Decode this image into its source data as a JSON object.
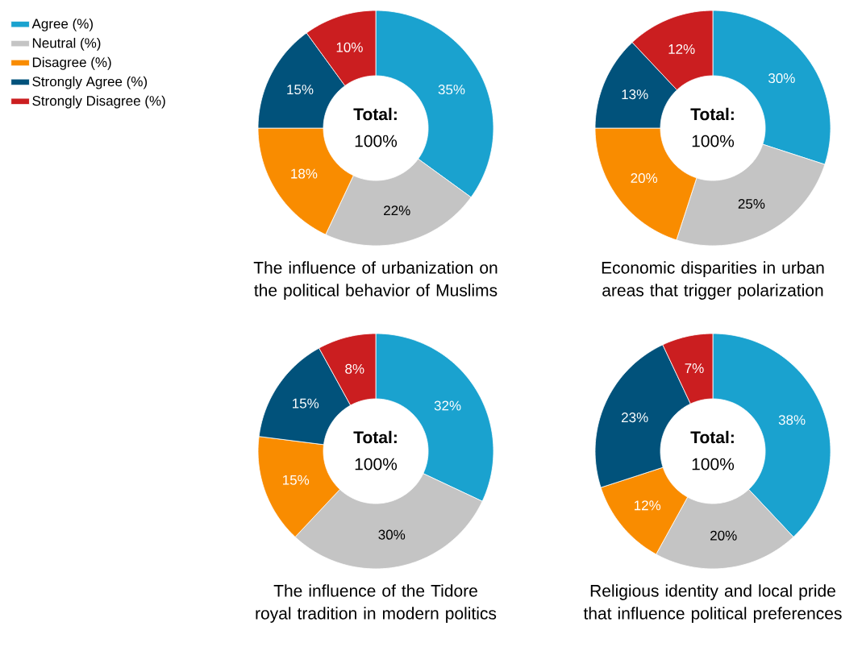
{
  "chart_data": [
    {
      "type": "donut",
      "title": "The influence of urbanization on the political behavior of Muslims",
      "categories": [
        "Agree (%)",
        "Neutral (%)",
        "Disagree (%)",
        "Strongly Agree (%)",
        "Strongly Disagree (%)"
      ],
      "values": [
        35,
        22,
        18,
        15,
        10
      ],
      "value_labels": [
        "35%",
        "22%",
        "18%",
        "15%",
        "10%"
      ],
      "colors": [
        "#1aa2cf",
        "#c4c4c4",
        "#f98c00",
        "#01527b",
        "#cb1e20"
      ],
      "annotations": [
        "Total:",
        "100%"
      ],
      "legend": "top left"
    },
    {
      "type": "donut",
      "title": "Economic disparities in urban areas that trigger polarization",
      "values": [
        30,
        25,
        20,
        13,
        12
      ],
      "value_labels": [
        "30%",
        "25%",
        "20%",
        "13%",
        "12%"
      ],
      "colors": [
        "#1aa2cf",
        "#c4c4c4",
        "#f98c00",
        "#01527b",
        "#cb1e20"
      ],
      "annotations": [
        "Total:",
        "100%"
      ]
    },
    {
      "type": "donut",
      "title": "The influence of the Tidore royal tradition in modern politics",
      "values": [
        32,
        30,
        15,
        15,
        8
      ],
      "value_labels": [
        "32%",
        "30%",
        "15%",
        "15%",
        "8%"
      ],
      "colors": [
        "#1aa2cf",
        "#c4c4c4",
        "#f98c00",
        "#01527b",
        "#cb1e20"
      ],
      "annotations": [
        "Total:",
        "100%"
      ]
    },
    {
      "type": "donut",
      "title": "Religious identity and local pride that influence political preferences",
      "values": [
        38,
        20,
        12,
        23,
        7
      ],
      "value_labels": [
        "38%",
        "20%",
        "12%",
        "23%",
        "7%"
      ],
      "colors": [
        "#1aa2cf",
        "#c4c4c4",
        "#f98c00",
        "#01527b",
        "#cb1e20"
      ],
      "annotations": [
        "Total:",
        "100%"
      ]
    }
  ]
}
